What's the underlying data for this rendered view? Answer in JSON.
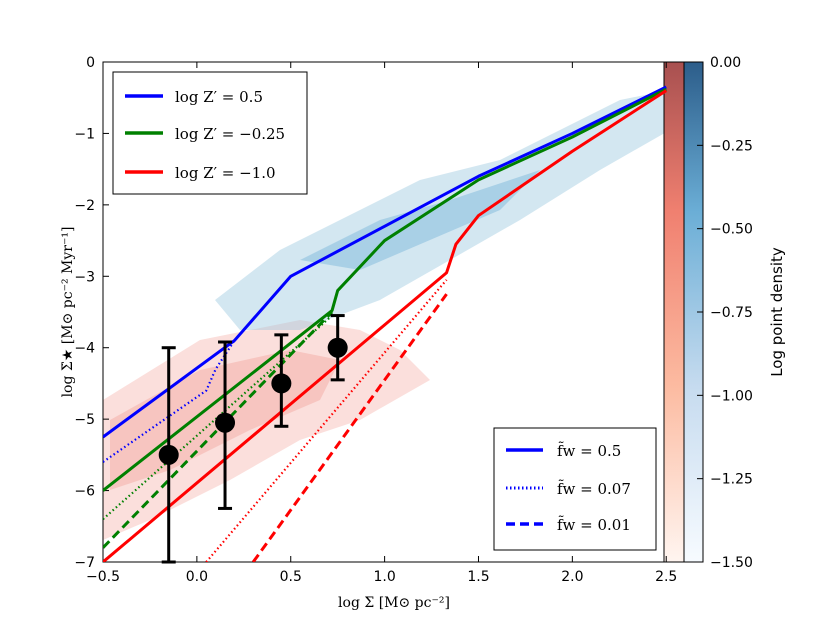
{
  "chart_data": {
    "type": "line",
    "xlabel": "log Σ [M⊙ pc⁻²]",
    "ylabel": "log Σ̇★ [M⊙ pc⁻² Myr⁻¹]",
    "xlim": [
      -0.5,
      2.6
    ],
    "ylim": [
      -7,
      0
    ],
    "xticks": [
      "−0.5",
      "0.0",
      "0.5",
      "1.0",
      "1.5",
      "2.0",
      "2.5"
    ],
    "yticks": [
      "−7",
      "−6",
      "−5",
      "−4",
      "−3",
      "−2",
      "−1",
      "0"
    ],
    "colors": {
      "blue": "#0000ff",
      "green": "#008000",
      "red": "#ff0000"
    },
    "legend_metallicity": [
      {
        "label": "log Z′ = 0.5",
        "color": "#0000ff"
      },
      {
        "label": "log Z′ = −0.25",
        "color": "#008000"
      },
      {
        "label": "log Z′ = −1.0",
        "color": "#ff0000"
      }
    ],
    "legend_fw": [
      {
        "label": "f̃w = 0.5",
        "style": "solid"
      },
      {
        "label": "f̃w = 0.07",
        "style": "dotted"
      },
      {
        "label": "f̃w = 0.01",
        "style": "dashed"
      }
    ],
    "series": [
      {
        "name": "log Z'=0.5, fw=0.5",
        "color": "#0000ff",
        "style": "solid",
        "x": [
          -0.5,
          0.2,
          0.2,
          0.5,
          1.0,
          1.5,
          2.0,
          2.5
        ],
        "y": [
          -5.25,
          -3.9,
          -3.9,
          -3.0,
          -2.3,
          -1.6,
          -1.0,
          -0.35
        ]
      },
      {
        "name": "log Z'=0.5, fw=0.07",
        "color": "#0000ff",
        "style": "dotted",
        "x": [
          -0.5,
          0.05,
          0.1,
          0.2
        ],
        "y": [
          -5.6,
          -4.6,
          -4.3,
          -3.9
        ]
      },
      {
        "name": "log Z'=-0.25, fw=0.5",
        "color": "#008000",
        "style": "solid",
        "x": [
          -0.5,
          0.72,
          0.75,
          1.0,
          1.5,
          2.0,
          2.5
        ],
        "y": [
          -6.0,
          -3.48,
          -3.2,
          -2.5,
          -1.65,
          -1.05,
          -0.38
        ]
      },
      {
        "name": "log Z'=-0.25, fw=0.07",
        "color": "#008000",
        "style": "dotted",
        "x": [
          -0.5,
          0.72
        ],
        "y": [
          -6.4,
          -3.55
        ]
      },
      {
        "name": "log Z'=-0.25, fw=0.01",
        "color": "#008000",
        "style": "dashed",
        "x": [
          -0.5,
          0.72
        ],
        "y": [
          -6.8,
          -3.5
        ]
      },
      {
        "name": "log Z'=-1.0, fw=0.5",
        "color": "#ff0000",
        "style": "solid",
        "x": [
          -0.5,
          1.33,
          1.38,
          1.5,
          2.0,
          2.5
        ],
        "y": [
          -7.0,
          -2.95,
          -2.55,
          -2.15,
          -1.25,
          -0.4
        ]
      },
      {
        "name": "log Z'=-1.0, fw=0.07",
        "color": "#ff0000",
        "style": "dotted",
        "x": [
          0.05,
          1.33
        ],
        "y": [
          -7.0,
          -3.05
        ]
      },
      {
        "name": "log Z'=-1.0, fw=0.01",
        "color": "#ff0000",
        "style": "dashed",
        "x": [
          0.3,
          1.33
        ],
        "y": [
          -7.0,
          -3.25
        ]
      }
    ],
    "points": {
      "x": [
        -0.15,
        0.15,
        0.45,
        0.75
      ],
      "y": [
        -5.5,
        -5.05,
        -4.5,
        -4.0
      ],
      "y_low": [
        -7.0,
        -6.25,
        -5.1,
        -4.45
      ],
      "y_high": [
        -4.0,
        -3.92,
        -3.82,
        -3.55
      ]
    },
    "density": {
      "label": "Log point density",
      "ticks": [
        "0.00",
        "−0.25",
        "−0.50",
        "−0.75",
        "−1.00",
        "−1.25",
        "−1.50"
      ],
      "range": [
        -1.5,
        0.0
      ]
    }
  }
}
